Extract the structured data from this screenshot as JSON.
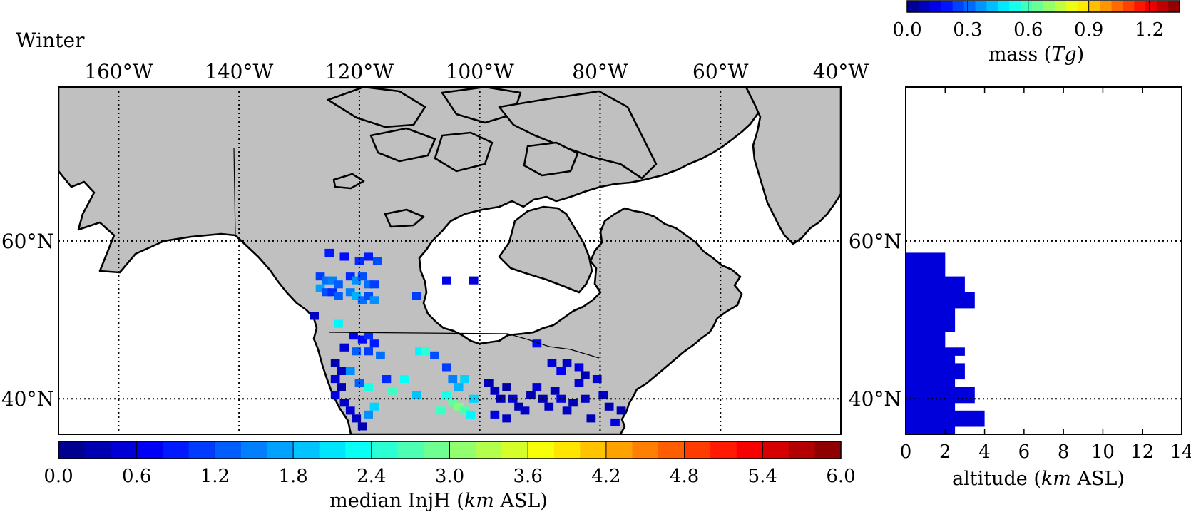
{
  "season_label": "Winter",
  "map": {
    "lon_ticks": [
      {
        "value": -160,
        "label": "160°W"
      },
      {
        "value": -140,
        "label": "140°W"
      },
      {
        "value": -120,
        "label": "120°W"
      },
      {
        "value": -100,
        "label": "100°W"
      },
      {
        "value": -80,
        "label": "80°W"
      },
      {
        "value": -60,
        "label": "60°W"
      },
      {
        "value": -40,
        "label": "40°W"
      }
    ],
    "lat_ticks": [
      {
        "value": 40,
        "label": "40°N"
      },
      {
        "value": 60,
        "label": "60°N"
      }
    ],
    "lon_range": [
      -170,
      -40
    ],
    "lat_range": [
      35.5,
      79.5
    ],
    "land_color": "#c0c0c0",
    "grid_style": "dotted"
  },
  "injh_colorbar": {
    "label": "median InjH (km ASL)",
    "label_parts": {
      "pre": "median InjH (",
      "unit": "km",
      "post": " ASL)"
    },
    "ticks": [
      "0.0",
      "0.6",
      "1.2",
      "1.8",
      "2.4",
      "3.0",
      "3.6",
      "4.2",
      "4.8",
      "5.4",
      "6.0"
    ],
    "range": [
      0,
      6
    ],
    "colormap": "jet"
  },
  "mass_colorbar": {
    "label": "mass (Tg)",
    "label_parts": {
      "pre": "mass (",
      "unit": "Tg",
      "post": ")"
    },
    "ticks": [
      "0.0",
      "0.3",
      "0.6",
      "0.9",
      "1.2"
    ],
    "range": [
      0,
      1.35
    ],
    "colormap": "jet"
  },
  "profile": {
    "xlabel": "altitude (km ASL)",
    "xlabel_parts": {
      "pre": "altitude (",
      "unit": "km",
      "post": " ASL)"
    },
    "x_ticks": [
      "0",
      "2",
      "4",
      "6",
      "8",
      "10",
      "12",
      "14"
    ],
    "xlim": [
      0,
      14
    ],
    "lat_ticks": [
      {
        "value": 40,
        "label": "40°N"
      },
      {
        "value": 60,
        "label": "60°N"
      }
    ]
  },
  "chart_data": [
    {
      "type": "heatmap",
      "title": "Winter",
      "xlabel": "",
      "ylabel": "",
      "colorbar_label": "median InjH (km ASL)",
      "value_range": [
        0,
        6
      ],
      "cells": [
        {
          "lon": -125,
          "lat": 58.5,
          "value": 0.9
        },
        {
          "lon": -122.5,
          "lat": 58.0,
          "value": 0.8
        },
        {
          "lon": -120,
          "lat": 57.5,
          "value": 1.0
        },
        {
          "lon": -118.5,
          "lat": 58.0,
          "value": 0.9
        },
        {
          "lon": -117,
          "lat": 57.5,
          "value": 1.2
        },
        {
          "lon": -126.5,
          "lat": 55.5,
          "value": 1.1
        },
        {
          "lon": -125.5,
          "lat": 55.0,
          "value": 1.4
        },
        {
          "lon": -124.5,
          "lat": 55.0,
          "value": 1.5
        },
        {
          "lon": -123.5,
          "lat": 54.5,
          "value": 1.3
        },
        {
          "lon": -121.5,
          "lat": 55.5,
          "value": 1.0
        },
        {
          "lon": -120.5,
          "lat": 55.0,
          "value": 1.6
        },
        {
          "lon": -119.5,
          "lat": 55.5,
          "value": 1.2
        },
        {
          "lon": -118.5,
          "lat": 54.5,
          "value": 1.4
        },
        {
          "lon": -117.5,
          "lat": 54.5,
          "value": 1.1
        },
        {
          "lon": -126.5,
          "lat": 54.0,
          "value": 1.7
        },
        {
          "lon": -125.5,
          "lat": 53.5,
          "value": 1.2
        },
        {
          "lon": -124.5,
          "lat": 53.5,
          "value": 1.0
        },
        {
          "lon": -123.5,
          "lat": 53.0,
          "value": 1.3
        },
        {
          "lon": -121.5,
          "lat": 53.5,
          "value": 1.5
        },
        {
          "lon": -120.5,
          "lat": 53.0,
          "value": 1.8
        },
        {
          "lon": -119.5,
          "lat": 52.5,
          "value": 1.4
        },
        {
          "lon": -118.5,
          "lat": 53.0,
          "value": 1.2
        },
        {
          "lon": -117.5,
          "lat": 52.5,
          "value": 1.6
        },
        {
          "lon": -105.5,
          "lat": 55.0,
          "value": 0.6
        },
        {
          "lon": -101,
          "lat": 55.0,
          "value": 0.5
        },
        {
          "lon": -110.5,
          "lat": 53.0,
          "value": 1.1
        },
        {
          "lon": -127.5,
          "lat": 50.5,
          "value": 0.4
        },
        {
          "lon": -123.5,
          "lat": 49.5,
          "value": 2.2
        },
        {
          "lon": -121,
          "lat": 48.0,
          "value": 0.7
        },
        {
          "lon": -119.5,
          "lat": 47.5,
          "value": 0.8
        },
        {
          "lon": -118.5,
          "lat": 48.0,
          "value": 1.0
        },
        {
          "lon": -117.5,
          "lat": 47.0,
          "value": 0.9
        },
        {
          "lon": -122.5,
          "lat": 46.5,
          "value": 0.5
        },
        {
          "lon": -120.5,
          "lat": 46.0,
          "value": 1.3
        },
        {
          "lon": -118.5,
          "lat": 46.0,
          "value": 1.1
        },
        {
          "lon": -116.5,
          "lat": 45.5,
          "value": 1.4
        },
        {
          "lon": -124,
          "lat": 44.5,
          "value": 0.3
        },
        {
          "lon": -123,
          "lat": 43.5,
          "value": 0.4
        },
        {
          "lon": -124,
          "lat": 42.5,
          "value": 0.5
        },
        {
          "lon": -123,
          "lat": 41.5,
          "value": 0.3
        },
        {
          "lon": -124,
          "lat": 40.5,
          "value": 0.6
        },
        {
          "lon": -122.5,
          "lat": 39.5,
          "value": 0.4
        },
        {
          "lon": -121.5,
          "lat": 38.5,
          "value": 0.5
        },
        {
          "lon": -120.5,
          "lat": 37.5,
          "value": 0.4
        },
        {
          "lon": -119.5,
          "lat": 36.5,
          "value": 0.3
        },
        {
          "lon": -121.5,
          "lat": 43.5,
          "value": 1.6
        },
        {
          "lon": -120,
          "lat": 42.0,
          "value": 1.3
        },
        {
          "lon": -118.5,
          "lat": 41.5,
          "value": 2.4
        },
        {
          "lon": -117.5,
          "lat": 39.0,
          "value": 2.0
        },
        {
          "lon": -118.5,
          "lat": 38.0,
          "value": 1.6
        },
        {
          "lon": -115.5,
          "lat": 42.5,
          "value": 1.0
        },
        {
          "lon": -114.5,
          "lat": 41.0,
          "value": 2.6
        },
        {
          "lon": -112.5,
          "lat": 42.5,
          "value": 2.3
        },
        {
          "lon": -110.5,
          "lat": 40.5,
          "value": 1.9
        },
        {
          "lon": -110,
          "lat": 46.0,
          "value": 2.2
        },
        {
          "lon": -109,
          "lat": 46.0,
          "value": 2.5
        },
        {
          "lon": -107.5,
          "lat": 45.5,
          "value": 1.2
        },
        {
          "lon": -105.5,
          "lat": 44.0,
          "value": 1.1
        },
        {
          "lon": -104.5,
          "lat": 42.5,
          "value": 1.5
        },
        {
          "lon": -103.5,
          "lat": 41.5,
          "value": 1.8
        },
        {
          "lon": -102.5,
          "lat": 42.5,
          "value": 2.0
        },
        {
          "lon": -105.5,
          "lat": 40.5,
          "value": 2.4
        },
        {
          "lon": -104.5,
          "lat": 39.5,
          "value": 2.8
        },
        {
          "lon": -103.5,
          "lat": 39.0,
          "value": 3.0
        },
        {
          "lon": -102.5,
          "lat": 38.5,
          "value": 2.7
        },
        {
          "lon": -101.5,
          "lat": 38.0,
          "value": 2.2
        },
        {
          "lon": -106.5,
          "lat": 38.5,
          "value": 2.6
        },
        {
          "lon": -101,
          "lat": 40.0,
          "value": 2.0
        },
        {
          "lon": -98.5,
          "lat": 42.0,
          "value": 0.3
        },
        {
          "lon": -97.5,
          "lat": 41.0,
          "value": 0.4
        },
        {
          "lon": -96.5,
          "lat": 40.0,
          "value": 0.3
        },
        {
          "lon": -95.5,
          "lat": 41.5,
          "value": 0.2
        },
        {
          "lon": -94.5,
          "lat": 40.0,
          "value": 0.5
        },
        {
          "lon": -93.5,
          "lat": 39.0,
          "value": 0.3
        },
        {
          "lon": -92.5,
          "lat": 38.5,
          "value": 0.4
        },
        {
          "lon": -91.5,
          "lat": 40.5,
          "value": 0.3
        },
        {
          "lon": -97.5,
          "lat": 38.0,
          "value": 0.6
        },
        {
          "lon": -95.5,
          "lat": 37.5,
          "value": 0.4
        },
        {
          "lon": -90.5,
          "lat": 41.5,
          "value": 0.5
        },
        {
          "lon": -89.5,
          "lat": 40.0,
          "value": 0.3
        },
        {
          "lon": -88.5,
          "lat": 39.0,
          "value": 0.4
        },
        {
          "lon": -87.5,
          "lat": 41.0,
          "value": 0.3
        },
        {
          "lon": -86.5,
          "lat": 40.0,
          "value": 0.6
        },
        {
          "lon": -85.5,
          "lat": 38.5,
          "value": 0.4
        },
        {
          "lon": -84.5,
          "lat": 39.5,
          "value": 0.3
        },
        {
          "lon": -83.5,
          "lat": 42.0,
          "value": 0.5
        },
        {
          "lon": -82.5,
          "lat": 40.0,
          "value": 0.4
        },
        {
          "lon": -81.5,
          "lat": 37.5,
          "value": 0.3
        },
        {
          "lon": -80.5,
          "lat": 42.5,
          "value": 0.5
        },
        {
          "lon": -79.5,
          "lat": 40.5,
          "value": 0.4
        },
        {
          "lon": -78.5,
          "lat": 39.0,
          "value": 0.3
        },
        {
          "lon": -77.5,
          "lat": 37.0,
          "value": 0.6
        },
        {
          "lon": -76.5,
          "lat": 38.5,
          "value": 0.3
        },
        {
          "lon": -90.5,
          "lat": 47.0,
          "value": 0.8
        },
        {
          "lon": -88,
          "lat": 44.5,
          "value": 0.5
        },
        {
          "lon": -86.5,
          "lat": 43.5,
          "value": 0.7
        },
        {
          "lon": -85.5,
          "lat": 44.5,
          "value": 0.4
        },
        {
          "lon": -83.5,
          "lat": 44.0,
          "value": 0.6
        },
        {
          "lon": -82.5,
          "lat": 43.0,
          "value": 0.3
        }
      ]
    },
    {
      "type": "bar",
      "orientation": "horizontal",
      "title": "",
      "xlabel": "altitude (km ASL)",
      "ylabel": "",
      "xlim": [
        0,
        14
      ],
      "ylim": [
        35.5,
        79.5
      ],
      "colorbar_label": "mass (Tg)",
      "bars": [
        {
          "lat": 58.0,
          "altitude_km": 2.0,
          "mass_Tg": 0.12
        },
        {
          "lat": 57.0,
          "altitude_km": 2.0,
          "mass_Tg": 0.12
        },
        {
          "lat": 56.0,
          "altitude_km": 2.0,
          "mass_Tg": 0.12
        },
        {
          "lat": 55.0,
          "altitude_km": 3.0,
          "mass_Tg": 0.12
        },
        {
          "lat": 54.0,
          "altitude_km": 3.0,
          "mass_Tg": 0.12
        },
        {
          "lat": 53.0,
          "altitude_km": 3.5,
          "mass_Tg": 0.12
        },
        {
          "lat": 52.0,
          "altitude_km": 3.5,
          "mass_Tg": 0.12
        },
        {
          "lat": 51.0,
          "altitude_km": 2.5,
          "mass_Tg": 0.12
        },
        {
          "lat": 50.0,
          "altitude_km": 2.5,
          "mass_Tg": 0.12
        },
        {
          "lat": 49.0,
          "altitude_km": 2.5,
          "mass_Tg": 0.12
        },
        {
          "lat": 48.0,
          "altitude_km": 2.0,
          "mass_Tg": 0.12
        },
        {
          "lat": 47.0,
          "altitude_km": 2.0,
          "mass_Tg": 0.12
        },
        {
          "lat": 46.0,
          "altitude_km": 3.0,
          "mass_Tg": 0.12
        },
        {
          "lat": 45.0,
          "altitude_km": 2.5,
          "mass_Tg": 0.12
        },
        {
          "lat": 44.0,
          "altitude_km": 3.0,
          "mass_Tg": 0.12
        },
        {
          "lat": 43.0,
          "altitude_km": 3.0,
          "mass_Tg": 0.12
        },
        {
          "lat": 42.0,
          "altitude_km": 2.5,
          "mass_Tg": 0.12
        },
        {
          "lat": 41.0,
          "altitude_km": 3.5,
          "mass_Tg": 0.12
        },
        {
          "lat": 40.0,
          "altitude_km": 3.5,
          "mass_Tg": 0.12
        },
        {
          "lat": 39.0,
          "altitude_km": 2.5,
          "mass_Tg": 0.12
        },
        {
          "lat": 38.0,
          "altitude_km": 4.0,
          "mass_Tg": 0.12
        },
        {
          "lat": 37.0,
          "altitude_km": 4.0,
          "mass_Tg": 0.12
        },
        {
          "lat": 36.0,
          "altitude_km": 2.5,
          "mass_Tg": 0.12
        }
      ]
    }
  ]
}
